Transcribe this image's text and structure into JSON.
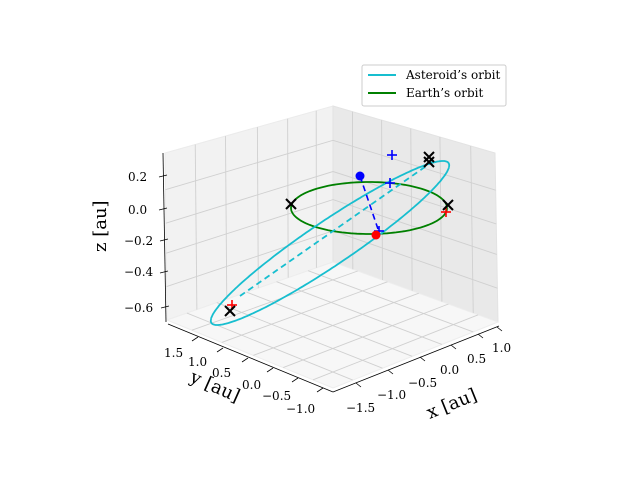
{
  "chart_data": {
    "type": "line3d",
    "xlabel": "x [au]",
    "ylabel": "y [au]",
    "zlabel": "z [au]",
    "xlim": [
      -1.8,
      1.1
    ],
    "ylim": [
      -1.1,
      1.8
    ],
    "zlim": [
      -0.7,
      0.35
    ],
    "x_ticks": [
      "−1.5",
      "−1.0",
      "−0.5",
      "0.0",
      "0.5",
      "1.0"
    ],
    "y_ticks": [
      "−1.0",
      "−0.5",
      "0.0",
      "0.5",
      "1.0",
      "1.5"
    ],
    "z_ticks": [
      "−0.6",
      "−0.4",
      "−0.2",
      "0.0",
      "0.2"
    ],
    "grid": true,
    "legend_position": "top-right",
    "series": [
      {
        "name": "Asteroid’s orbit",
        "color": "#17becf"
      },
      {
        "name": "Earth’s orbit",
        "color": "#008000"
      }
    ]
  }
}
